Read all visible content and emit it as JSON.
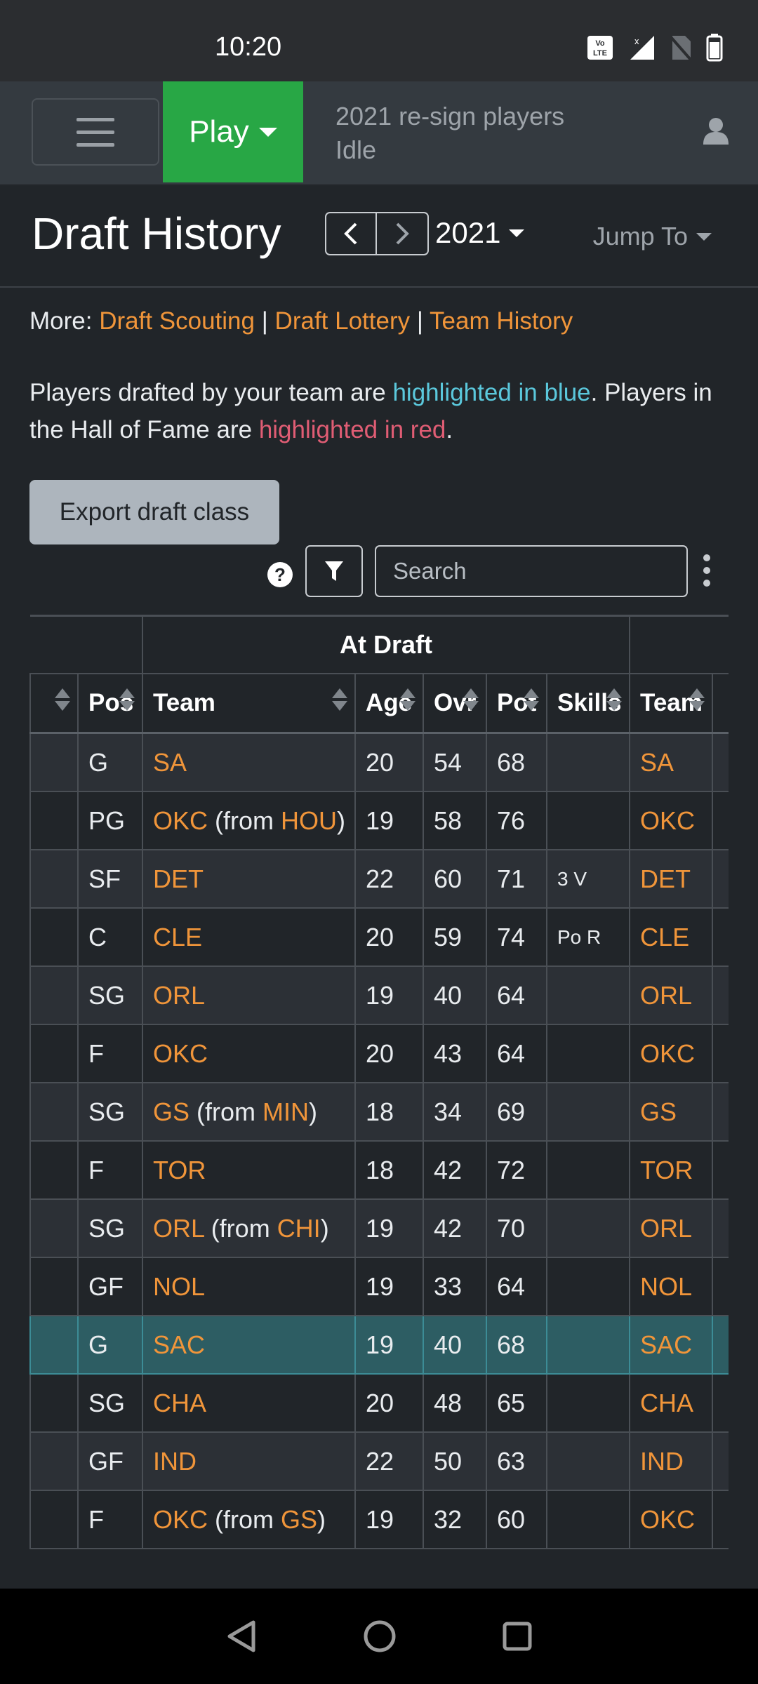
{
  "status_bar": {
    "time": "10:20",
    "icons": [
      "volte-icon",
      "signal-icon",
      "no-sim-icon",
      "battery-icon"
    ]
  },
  "navbar": {
    "play_label": "Play",
    "status_line1": "2021 re-sign players",
    "status_line2": "Idle",
    "accent_color": "#28a745"
  },
  "header": {
    "title": "Draft History",
    "season": "2021",
    "jump_to": "Jump To"
  },
  "more": {
    "label": "More:",
    "links": [
      "Draft Scouting",
      "Draft Lottery",
      "Team History"
    ],
    "separator": "|"
  },
  "description": {
    "part1": "Players drafted by your team are ",
    "blue_text": "highlighted in blue",
    "part2": ". Players in the Hall of Fame are ",
    "red_text": "highlighted in red",
    "part3": "."
  },
  "controls": {
    "export_label": "Export draft class",
    "search_placeholder": "Search"
  },
  "table": {
    "group_header": "At Draft",
    "columns": [
      "Pos",
      "Team",
      "Age",
      "Ovr",
      "Pot",
      "Skills",
      "Team"
    ],
    "rows": [
      {
        "pos": "G",
        "team": "SA",
        "from": "",
        "age": "20",
        "ovr": "54",
        "pot": "68",
        "skills": "",
        "cur_team": "SA",
        "highlight": false
      },
      {
        "pos": "PG",
        "team": "OKC",
        "from": "HOU",
        "age": "19",
        "ovr": "58",
        "pot": "76",
        "skills": "",
        "cur_team": "OKC",
        "highlight": false
      },
      {
        "pos": "SF",
        "team": "DET",
        "from": "",
        "age": "22",
        "ovr": "60",
        "pot": "71",
        "skills": "3 V",
        "cur_team": "DET",
        "highlight": false
      },
      {
        "pos": "C",
        "team": "CLE",
        "from": "",
        "age": "20",
        "ovr": "59",
        "pot": "74",
        "skills": "Po R",
        "cur_team": "CLE",
        "highlight": false
      },
      {
        "pos": "SG",
        "team": "ORL",
        "from": "",
        "age": "19",
        "ovr": "40",
        "pot": "64",
        "skills": "",
        "cur_team": "ORL",
        "highlight": false
      },
      {
        "pos": "F",
        "team": "OKC",
        "from": "",
        "age": "20",
        "ovr": "43",
        "pot": "64",
        "skills": "",
        "cur_team": "OKC",
        "highlight": false
      },
      {
        "pos": "SG",
        "team": "GS",
        "from": "MIN",
        "age": "18",
        "ovr": "34",
        "pot": "69",
        "skills": "",
        "cur_team": "GS",
        "highlight": false
      },
      {
        "pos": "F",
        "team": "TOR",
        "from": "",
        "age": "18",
        "ovr": "42",
        "pot": "72",
        "skills": "",
        "cur_team": "TOR",
        "highlight": false
      },
      {
        "pos": "SG",
        "team": "ORL",
        "from": "CHI",
        "age": "19",
        "ovr": "42",
        "pot": "70",
        "skills": "",
        "cur_team": "ORL",
        "highlight": false
      },
      {
        "pos": "GF",
        "team": "NOL",
        "from": "",
        "age": "19",
        "ovr": "33",
        "pot": "64",
        "skills": "",
        "cur_team": "NOL",
        "highlight": false
      },
      {
        "pos": "G",
        "team": "SAC",
        "from": "",
        "age": "19",
        "ovr": "40",
        "pot": "68",
        "skills": "",
        "cur_team": "SAC",
        "highlight": true
      },
      {
        "pos": "SG",
        "team": "CHA",
        "from": "",
        "age": "20",
        "ovr": "48",
        "pot": "65",
        "skills": "",
        "cur_team": "CHA",
        "highlight": false
      },
      {
        "pos": "GF",
        "team": "IND",
        "from": "",
        "age": "22",
        "ovr": "50",
        "pot": "63",
        "skills": "",
        "cur_team": "IND",
        "highlight": false
      },
      {
        "pos": "F",
        "team": "OKC",
        "from": "GS",
        "age": "19",
        "ovr": "32",
        "pot": "60",
        "skills": "",
        "cur_team": "OKC",
        "highlight": false
      }
    ]
  },
  "colors": {
    "background": "#212529",
    "link": "#f0953a",
    "user_team_highlight": "#2d5d63",
    "blue_text": "#5bc8dc",
    "red_text": "#e05d74"
  }
}
